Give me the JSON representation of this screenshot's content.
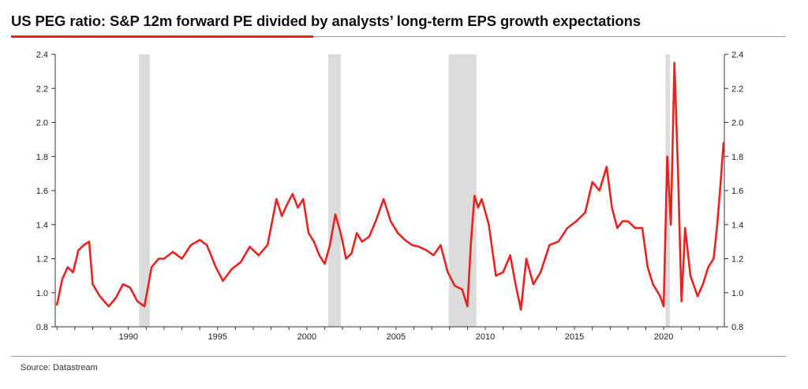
{
  "title": "US PEG ratio: S&P 12m forward PE divided by analysts’ long-term EPS growth expectations",
  "source": "Source: Datastream",
  "colors": {
    "line": "#e8231f",
    "shade": "#dcdcdc",
    "accent": "#e8231f",
    "axis": "#333333"
  },
  "chart_data": {
    "type": "line",
    "title": "US PEG ratio: S&P 12m forward PE divided by analysts’ long-term EPS growth expectations",
    "xlabel": "",
    "ylabel": "",
    "xlim": [
      1985.9,
      2023.4
    ],
    "ylim": [
      0.8,
      2.4
    ],
    "x_ticks": [
      1990,
      1995,
      2000,
      2005,
      2010,
      2015,
      2020
    ],
    "x_tick_labels": [
      "1990",
      "1995",
      "2000",
      "2005",
      "2010",
      "2015",
      "2020"
    ],
    "y_ticks": [
      0.8,
      1.0,
      1.2,
      1.4,
      1.6,
      1.8,
      2.0,
      2.2,
      2.4
    ],
    "y_tick_labels": [
      "0.8",
      "1.0",
      "1.2",
      "1.4",
      "1.6",
      "1.8",
      "2.0",
      "2.2",
      "2.4"
    ],
    "y_axis_right": true,
    "grid": false,
    "recessions": [
      [
        1990.6,
        1991.2
      ],
      [
        2001.2,
        2001.9
      ],
      [
        2007.95,
        2009.5
      ],
      [
        2020.1,
        2020.35
      ]
    ],
    "series": [
      {
        "x": [
          1986.0,
          1986.3,
          1986.6,
          1986.9,
          1987.2,
          1987.5,
          1987.8,
          1988.0,
          1988.4,
          1988.9,
          1989.3,
          1989.7,
          1990.1,
          1990.5,
          1990.9,
          1991.3,
          1991.7,
          1992.0,
          1992.5,
          1993.0,
          1993.5,
          1994.0,
          1994.4,
          1994.9,
          1995.3,
          1995.8,
          1996.3,
          1996.8,
          1997.3,
          1997.8,
          1998.3,
          1998.6,
          1998.9,
          1999.2,
          1999.5,
          1999.8,
          2000.1,
          2000.4,
          2000.7,
          2001.0,
          2001.3,
          2001.6,
          2001.9,
          2002.2,
          2002.5,
          2002.8,
          2003.1,
          2003.5,
          2003.9,
          2004.3,
          2004.7,
          2005.1,
          2005.5,
          2005.9,
          2006.3,
          2006.7,
          2007.1,
          2007.5,
          2007.9,
          2008.3,
          2008.7,
          2009.0,
          2009.2,
          2009.4,
          2009.6,
          2009.8,
          2010.2,
          2010.6,
          2011.0,
          2011.4,
          2011.7,
          2012.0,
          2012.3,
          2012.7,
          2013.1,
          2013.6,
          2014.1,
          2014.6,
          2015.1,
          2015.6,
          2016.0,
          2016.4,
          2016.8,
          2017.1,
          2017.4,
          2017.7,
          2018.0,
          2018.4,
          2018.8,
          2019.1,
          2019.4,
          2019.8,
          2020.0,
          2020.2,
          2020.4,
          2020.6,
          2020.8,
          2021.0,
          2021.2,
          2021.5,
          2021.9,
          2022.2,
          2022.5,
          2022.8,
          2023.0,
          2023.2,
          2023.35
        ],
        "y": [
          0.93,
          1.08,
          1.15,
          1.12,
          1.25,
          1.28,
          1.3,
          1.05,
          0.98,
          0.92,
          0.97,
          1.05,
          1.03,
          0.95,
          0.92,
          1.15,
          1.2,
          1.2,
          1.24,
          1.2,
          1.28,
          1.31,
          1.28,
          1.15,
          1.07,
          1.14,
          1.18,
          1.27,
          1.22,
          1.28,
          1.55,
          1.45,
          1.52,
          1.58,
          1.5,
          1.55,
          1.35,
          1.3,
          1.22,
          1.17,
          1.28,
          1.46,
          1.35,
          1.2,
          1.23,
          1.35,
          1.3,
          1.33,
          1.43,
          1.55,
          1.42,
          1.35,
          1.31,
          1.28,
          1.27,
          1.25,
          1.22,
          1.28,
          1.12,
          1.04,
          1.02,
          0.92,
          1.3,
          1.57,
          1.5,
          1.55,
          1.4,
          1.1,
          1.12,
          1.22,
          1.05,
          0.9,
          1.2,
          1.05,
          1.12,
          1.28,
          1.3,
          1.38,
          1.42,
          1.47,
          1.65,
          1.6,
          1.74,
          1.5,
          1.38,
          1.42,
          1.42,
          1.38,
          1.38,
          1.15,
          1.05,
          0.98,
          0.92,
          1.8,
          1.4,
          2.35,
          1.72,
          0.95,
          1.38,
          1.1,
          0.98,
          1.05,
          1.15,
          1.2,
          1.4,
          1.66,
          1.88
        ]
      }
    ]
  }
}
